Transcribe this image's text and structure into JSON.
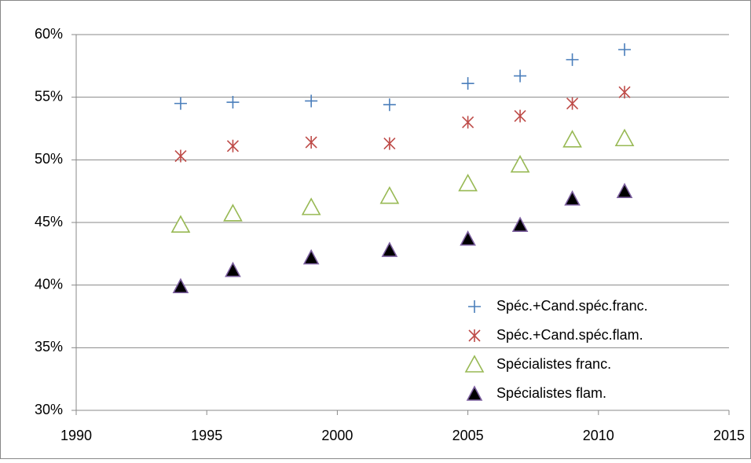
{
  "chart_data": {
    "type": "scatter",
    "xlim": [
      1990,
      2015
    ],
    "xticks": [
      1990,
      1995,
      2000,
      2005,
      2010,
      2015
    ],
    "ylim": [
      30,
      60
    ],
    "yticks": [
      {
        "value": 30,
        "label": "30%"
      },
      {
        "value": 35,
        "label": "35%"
      },
      {
        "value": 40,
        "label": "40%"
      },
      {
        "value": 45,
        "label": "45%"
      },
      {
        "value": 50,
        "label": "50%"
      },
      {
        "value": 55,
        "label": "55%"
      },
      {
        "value": 60,
        "label": "60%"
      }
    ],
    "grid": true,
    "legend": "lower right",
    "series": [
      {
        "name": "Spéc.+Cand.spéc.franc.",
        "color": "#4a7ebb",
        "marker": "plus",
        "x": [
          1994,
          1996,
          1999,
          2002,
          2005,
          2007,
          2009,
          2011
        ],
        "values": [
          54.5,
          54.6,
          54.7,
          54.4,
          56.1,
          56.7,
          58.0,
          58.8
        ]
      },
      {
        "name": "Spéc.+Cand.spéc.flam.",
        "color": "#be4b48",
        "marker": "asterisk",
        "x": [
          1994,
          1996,
          1999,
          2002,
          2005,
          2007,
          2009,
          2011
        ],
        "values": [
          50.3,
          51.1,
          51.4,
          51.3,
          53.0,
          53.5,
          54.5,
          55.4
        ]
      },
      {
        "name": "Spécialistes franc.",
        "color": "#98b954",
        "marker": "triangle-open",
        "x": [
          1994,
          1996,
          1999,
          2002,
          2005,
          2007,
          2009,
          2011
        ],
        "values": [
          44.8,
          45.7,
          46.2,
          47.1,
          48.1,
          49.6,
          51.6,
          51.7
        ]
      },
      {
        "name": "Spécialistes flam.",
        "color": "#7d60a0",
        "marker": "triangle-filled",
        "x": [
          1994,
          1996,
          1999,
          2002,
          2005,
          2007,
          2009,
          2011
        ],
        "values": [
          39.9,
          41.2,
          42.2,
          42.8,
          43.7,
          44.8,
          46.9,
          47.5
        ]
      }
    ]
  }
}
